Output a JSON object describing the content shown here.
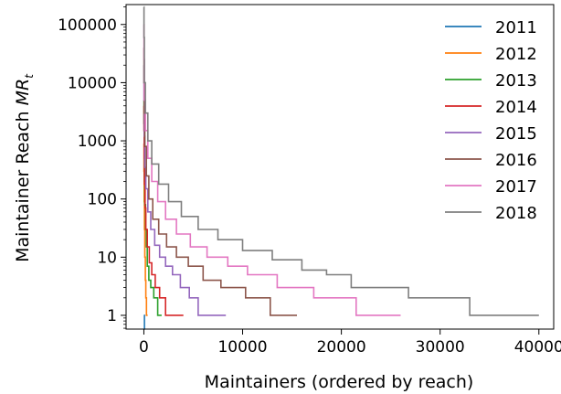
{
  "chart_data": {
    "type": "line",
    "xlabel": "Maintainers (ordered by reach)",
    "ylabel": "Maintainer Reach",
    "ylabel_symbol": "MR",
    "ylabel_subscript": "t",
    "yscale": "log",
    "xlim": [
      -1800,
      41500
    ],
    "ylim": [
      0.58,
      220000
    ],
    "x_ticks": [
      {
        "value": 0,
        "label": "0"
      },
      {
        "value": 10000,
        "label": "10000"
      },
      {
        "value": 20000,
        "label": "20000"
      },
      {
        "value": 30000,
        "label": "30000"
      },
      {
        "value": 40000,
        "label": "40000"
      }
    ],
    "y_ticks": [
      {
        "value": 1,
        "label": "1"
      },
      {
        "value": 10,
        "label": "10"
      },
      {
        "value": 100,
        "label": "100"
      },
      {
        "value": 1000,
        "label": "1000"
      },
      {
        "value": 10000,
        "label": "10000"
      },
      {
        "value": 100000,
        "label": "100000"
      }
    ],
    "grid": false,
    "legend_position": "top-right",
    "series": [
      {
        "name": "2011",
        "color": "#1f77b4",
        "x": [
          0,
          20,
          40,
          60,
          60,
          100
        ],
        "y": [
          1,
          1,
          1,
          1,
          0.58,
          0.58
        ]
      },
      {
        "name": "2012",
        "color": "#ff7f0e",
        "x": [
          0,
          10,
          30,
          60,
          100,
          150,
          200,
          260,
          320,
          380
        ],
        "y": [
          900,
          300,
          90,
          30,
          10,
          4,
          2,
          1,
          1,
          1
        ]
      },
      {
        "name": "2013",
        "color": "#2ca02c",
        "x": [
          0,
          10,
          30,
          60,
          100,
          170,
          250,
          350,
          500,
          700,
          1000,
          1400,
          1800
        ],
        "y": [
          5000,
          2000,
          600,
          200,
          80,
          30,
          15,
          7,
          4,
          3,
          2,
          1,
          1
        ]
      },
      {
        "name": "2014",
        "color": "#d62728",
        "x": [
          0,
          10,
          30,
          60,
          120,
          200,
          350,
          550,
          800,
          1150,
          1600,
          2200,
          3000,
          4000
        ],
        "y": [
          4000,
          1500,
          500,
          180,
          70,
          30,
          15,
          8,
          5,
          3,
          2,
          1,
          1,
          1
        ]
      },
      {
        "name": "2015",
        "color": "#9467bd",
        "x": [
          0,
          10,
          40,
          100,
          200,
          400,
          700,
          1100,
          1600,
          2200,
          2900,
          3700,
          4600,
          5500,
          6500,
          8300
        ],
        "y": [
          20000,
          5000,
          1200,
          350,
          150,
          60,
          30,
          16,
          10,
          7,
          5,
          3,
          2,
          1,
          1,
          1
        ]
      },
      {
        "name": "2016",
        "color": "#8c564b",
        "x": [
          0,
          10,
          40,
          100,
          250,
          500,
          900,
          1500,
          2300,
          3300,
          4500,
          6000,
          7800,
          10300,
          12800,
          15500
        ],
        "y": [
          40000,
          10000,
          3000,
          800,
          250,
          100,
          45,
          25,
          15,
          10,
          7,
          4,
          3,
          2,
          1,
          1
        ]
      },
      {
        "name": "2017",
        "color": "#e377c2",
        "x": [
          0,
          10,
          50,
          150,
          400,
          800,
          1400,
          2200,
          3300,
          4700,
          6400,
          8500,
          10500,
          13500,
          17200,
          21500,
          26000
        ],
        "y": [
          100000,
          25000,
          5000,
          1500,
          500,
          200,
          90,
          45,
          25,
          15,
          10,
          7,
          5,
          3,
          2,
          1,
          1
        ]
      },
      {
        "name": "2018",
        "color": "#7f7f7f",
        "x": [
          0,
          10,
          50,
          150,
          400,
          800,
          1500,
          2500,
          3800,
          5500,
          7500,
          10000,
          13000,
          16000,
          18500,
          21000,
          26800,
          33000,
          40000
        ],
        "y": [
          200000,
          60000,
          10000,
          3000,
          1000,
          400,
          180,
          90,
          50,
          30,
          20,
          13,
          9,
          6,
          5,
          3,
          2,
          1,
          1
        ]
      }
    ]
  }
}
